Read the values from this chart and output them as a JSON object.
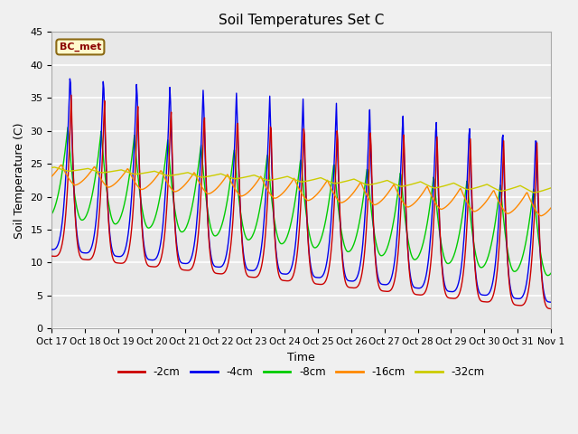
{
  "title": "Soil Temperatures Set C",
  "xlabel": "Time",
  "ylabel": "Soil Temperature (C)",
  "ylim": [
    0,
    45
  ],
  "annotation": "BC_met",
  "legend": [
    "-2cm",
    "-4cm",
    "-8cm",
    "-16cm",
    "-32cm"
  ],
  "colors": [
    "#cc0000",
    "#0000ee",
    "#00cc00",
    "#ff8800",
    "#cccc00"
  ],
  "plot_bg_color": "#e8e8e8",
  "fig_bg_color": "#f0f0f0",
  "x_tick_labels": [
    "Oct 17",
    "Oct 18",
    "Oct 19",
    "Oct 20",
    "Oct 21",
    "Oct 22",
    "Oct 23",
    "Oct 24",
    "Oct 25",
    "Oct 26",
    "Oct 27",
    "Oct 28",
    "Oct 29",
    "Oct 30",
    "Oct 31",
    "Nov 1"
  ],
  "yticks": [
    0,
    5,
    10,
    15,
    20,
    25,
    30,
    35,
    40,
    45
  ],
  "figsize": [
    6.4,
    4.8
  ],
  "dpi": 100
}
